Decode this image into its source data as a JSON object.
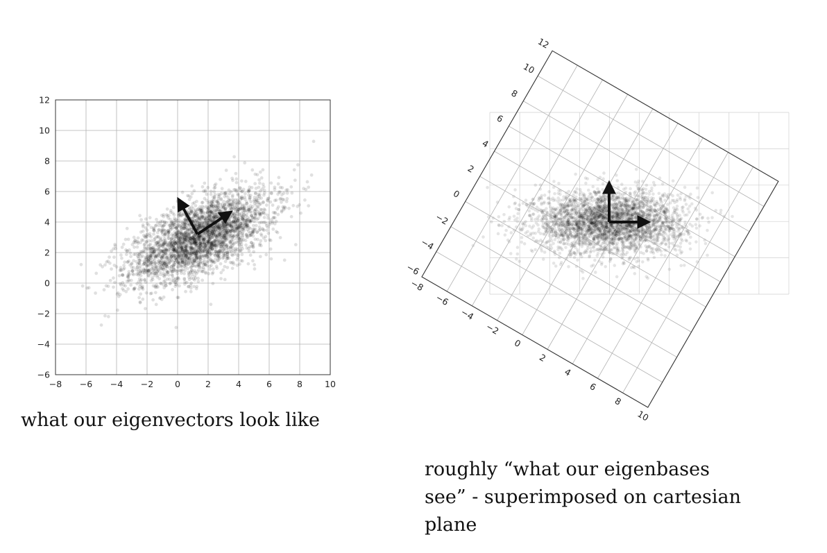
{
  "captions": {
    "left": "what our eigenvectors look like",
    "right_lines": [
      "roughly “what our eigenbases",
      "see” - superimposed on cartesian",
      "plane"
    ]
  },
  "colors": {
    "points": "#000000",
    "grid": "#b0b0b0",
    "axes": "#333333",
    "arrows": "#111111"
  },
  "chart_data": [
    {
      "type": "scatter",
      "title": "",
      "xlabel": "",
      "ylabel": "",
      "xlim": [
        -8,
        10
      ],
      "ylim": [
        -6,
        12
      ],
      "xticks": [
        -8,
        -6,
        -4,
        -2,
        0,
        2,
        4,
        6,
        8,
        10
      ],
      "yticks": [
        -6,
        -4,
        -2,
        0,
        2,
        4,
        6,
        8,
        10,
        12
      ],
      "tick_labels_x": [
        "−8",
        "−6",
        "−4",
        "−2",
        "0",
        "2",
        "4",
        "6",
        "8",
        "10"
      ],
      "tick_labels_y": [
        "−6",
        "−4",
        "−2",
        "0",
        "2",
        "4",
        "6",
        "8",
        "10",
        "12"
      ],
      "grid": true,
      "series": [
        {
          "kind": "gaussian_cloud",
          "n": 3000,
          "mean": [
            1.5,
            3
          ],
          "principal_axis_deg": 26,
          "std_major": 2.6,
          "std_minor": 1.1,
          "alpha": 0.12
        }
      ],
      "arrows": [
        {
          "from": [
            1.3,
            3.2
          ],
          "to": [
            3.4,
            4.6
          ]
        },
        {
          "from": [
            1.3,
            3.2
          ],
          "to": [
            0.1,
            5.4
          ]
        }
      ]
    },
    {
      "type": "scatter",
      "title": "",
      "xlabel": "",
      "ylabel": "",
      "xlim": [
        -8,
        10
      ],
      "ylim": [
        -6,
        12
      ],
      "xticks": [
        -8,
        -6,
        -4,
        -2,
        0,
        2,
        4,
        6,
        8,
        10
      ],
      "yticks": [
        -6,
        -4,
        -2,
        0,
        2,
        4,
        6,
        8,
        10,
        12
      ],
      "tick_labels_x": [
        "−8",
        "−6",
        "−4",
        "−2",
        "0",
        "2",
        "4",
        "6",
        "8",
        "10"
      ],
      "tick_labels_y": [
        "−6",
        "−4",
        "−2",
        "0",
        "2",
        "4",
        "6",
        "8",
        "10",
        "12"
      ],
      "grid": true,
      "rotation_deg": -30,
      "series": [
        {
          "kind": "gaussian_cloud",
          "n": 3000,
          "mean": [
            0,
            0
          ],
          "principal_axis_deg": 0,
          "std_major": 2.6,
          "std_minor": 1.1,
          "alpha": 0.1
        }
      ],
      "arrows": [
        {
          "from": [
            0,
            0
          ],
          "to": [
            2.6,
            0
          ]
        },
        {
          "from": [
            0,
            0
          ],
          "to": [
            0,
            2.6
          ]
        }
      ]
    }
  ]
}
